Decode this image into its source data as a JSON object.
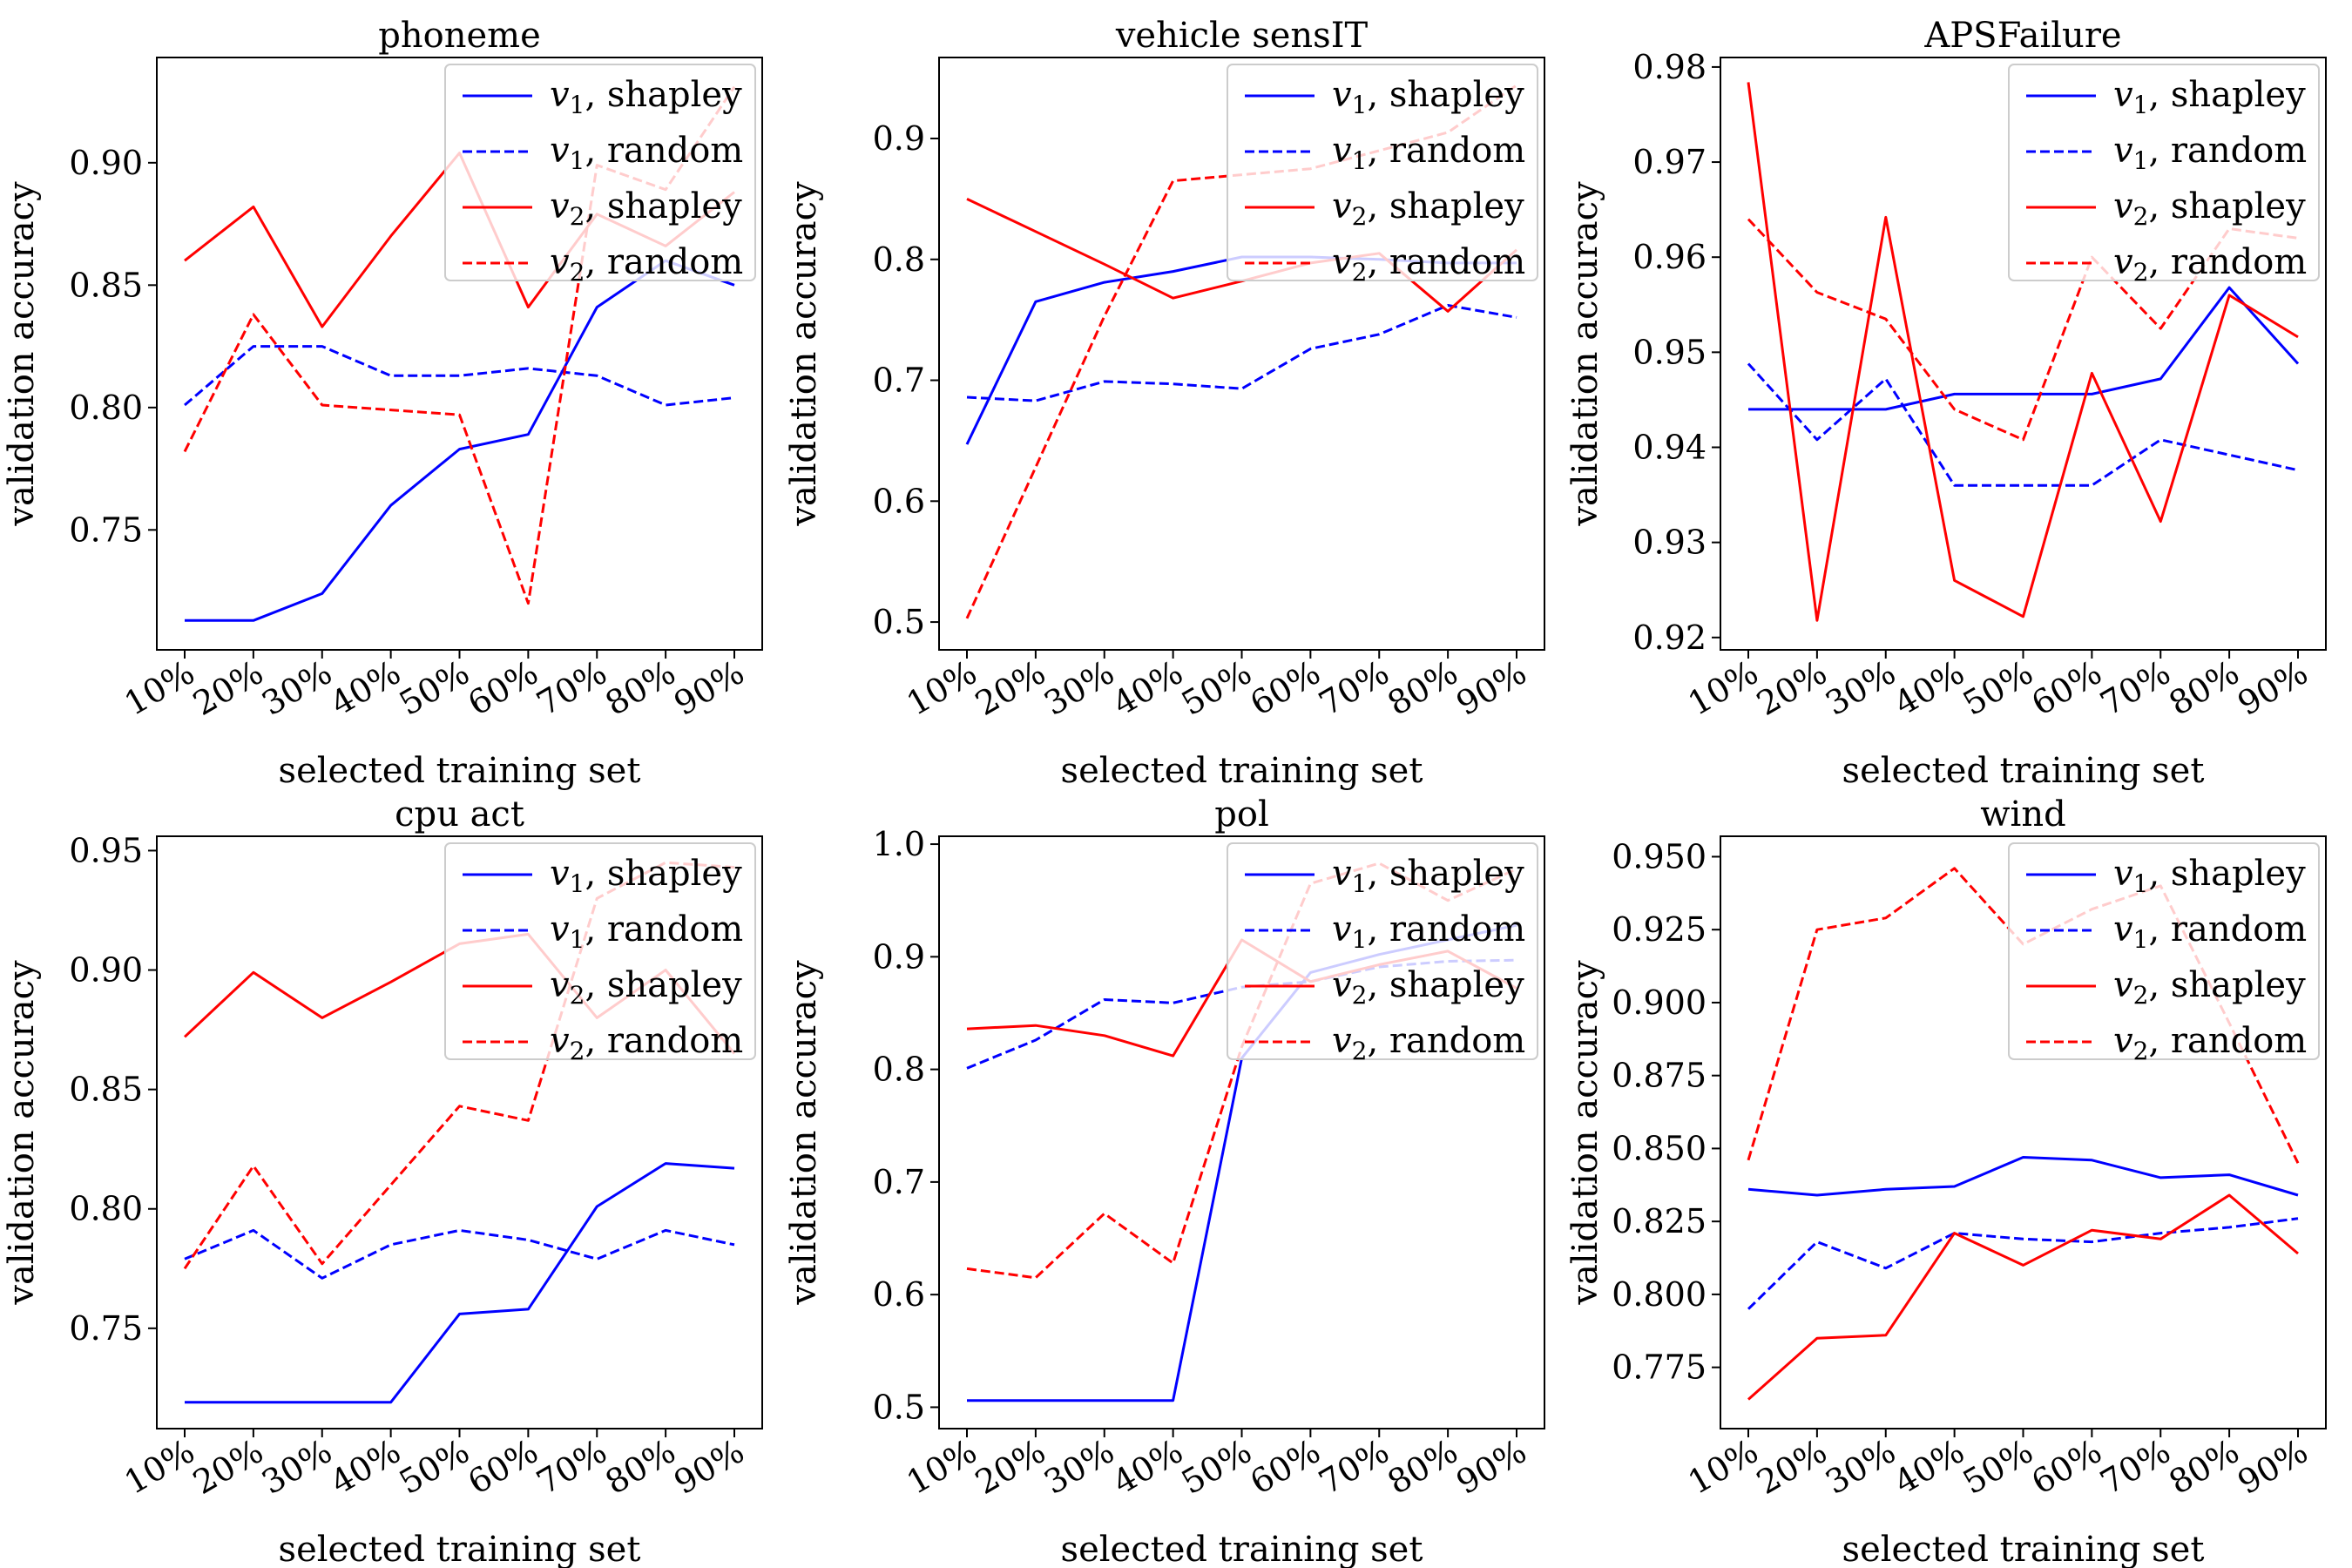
{
  "figure": {
    "legend_entries": [
      {
        "var": "v",
        "sub": "1",
        "rest": ", shapley",
        "color": "#0000ff",
        "dash": "solid"
      },
      {
        "var": "v",
        "sub": "1",
        "rest": ", random",
        "color": "#0000ff",
        "dash": "dashed"
      },
      {
        "var": "v",
        "sub": "2",
        "rest": ", shapley",
        "color": "#ff0000",
        "dash": "solid"
      },
      {
        "var": "v",
        "sub": "2",
        "rest": ", random",
        "color": "#ff0000",
        "dash": "dashed"
      }
    ]
  },
  "chart_data": [
    {
      "type": "line",
      "title": "phoneme",
      "xlabel": "selected training set",
      "ylabel": "validation accuracy",
      "categories": [
        "10%",
        "20%",
        "30%",
        "40%",
        "50%",
        "60%",
        "70%",
        "80%",
        "90%"
      ],
      "ylim": [
        0.701,
        0.943
      ],
      "yticks": [
        0.75,
        0.8,
        0.85,
        0.9
      ],
      "ytick_labels": [
        "0.75",
        "0.80",
        "0.85",
        "0.90"
      ],
      "legend_position": "top-right",
      "series": [
        {
          "name": "v1, shapley",
          "color": "#0000ff",
          "dash": "solid",
          "values": [
            0.713,
            0.713,
            0.724,
            0.76,
            0.783,
            0.789,
            0.841,
            0.86,
            0.85
          ]
        },
        {
          "name": "v1, random",
          "color": "#0000ff",
          "dash": "dashed",
          "values": [
            0.801,
            0.825,
            0.825,
            0.813,
            0.813,
            0.816,
            0.813,
            0.801,
            0.804
          ]
        },
        {
          "name": "v2, shapley",
          "color": "#ff0000",
          "dash": "solid",
          "values": [
            0.86,
            0.882,
            0.833,
            0.87,
            0.904,
            0.841,
            0.879,
            0.866,
            0.888
          ]
        },
        {
          "name": "v2, random",
          "color": "#ff0000",
          "dash": "dashed",
          "values": [
            0.782,
            0.838,
            0.801,
            0.799,
            0.797,
            0.72,
            0.899,
            0.889,
            0.931
          ]
        }
      ]
    },
    {
      "type": "line",
      "title": "vehicle sensIT",
      "xlabel": "selected training set",
      "ylabel": "validation accuracy",
      "categories": [
        "10%",
        "20%",
        "30%",
        "40%",
        "50%",
        "60%",
        "70%",
        "80%",
        "90%"
      ],
      "ylim": [
        0.477,
        0.967
      ],
      "yticks": [
        0.5,
        0.6,
        0.7,
        0.8,
        0.9
      ],
      "ytick_labels": [
        "0.5",
        "0.6",
        "0.7",
        "0.8",
        "0.9"
      ],
      "legend_position": "top-right",
      "series": [
        {
          "name": "v1, shapley",
          "color": "#0000ff",
          "dash": "solid",
          "values": [
            0.647,
            0.765,
            0.781,
            0.79,
            0.802,
            0.802,
            0.8,
            0.797,
            0.797
          ]
        },
        {
          "name": "v1, random",
          "color": "#0000ff",
          "dash": "dashed",
          "values": [
            0.686,
            0.683,
            0.699,
            0.697,
            0.693,
            0.726,
            0.738,
            0.762,
            0.752
          ]
        },
        {
          "name": "v2, shapley",
          "color": "#ff0000",
          "dash": "solid",
          "values": [
            0.85,
            0.823,
            0.796,
            0.768,
            0.782,
            0.797,
            0.805,
            0.757,
            0.808
          ]
        },
        {
          "name": "v2, random",
          "color": "#ff0000",
          "dash": "dashed",
          "values": [
            0.503,
            0.628,
            0.753,
            0.865,
            0.87,
            0.875,
            0.89,
            0.905,
            0.944
          ]
        }
      ]
    },
    {
      "type": "line",
      "title": "APSFailure",
      "xlabel": "selected training set",
      "ylabel": "validation accuracy",
      "categories": [
        "10%",
        "20%",
        "30%",
        "40%",
        "50%",
        "60%",
        "70%",
        "80%",
        "90%"
      ],
      "ylim": [
        0.9187,
        0.981
      ],
      "yticks": [
        0.92,
        0.93,
        0.94,
        0.95,
        0.96,
        0.97,
        0.98
      ],
      "ytick_labels": [
        "0.92",
        "0.93",
        "0.94",
        "0.95",
        "0.96",
        "0.97",
        "0.98"
      ],
      "legend_position": "top-right",
      "series": [
        {
          "name": "v1, shapley",
          "color": "#0000ff",
          "dash": "solid",
          "values": [
            0.944,
            0.944,
            0.944,
            0.9456,
            0.9456,
            0.9456,
            0.9472,
            0.9568,
            0.9488
          ]
        },
        {
          "name": "v1, random",
          "color": "#0000ff",
          "dash": "dashed",
          "values": [
            0.9488,
            0.9408,
            0.9472,
            0.936,
            0.936,
            0.936,
            0.9408,
            0.9392,
            0.9376
          ]
        },
        {
          "name": "v2, shapley",
          "color": "#ff0000",
          "dash": "solid",
          "values": [
            0.9784,
            0.9218,
            0.9642,
            0.926,
            0.9222,
            0.9478,
            0.9322,
            0.956,
            0.9516
          ]
        },
        {
          "name": "v2, random",
          "color": "#ff0000",
          "dash": "dashed",
          "values": [
            0.964,
            0.9563,
            0.9535,
            0.944,
            0.9408,
            0.96,
            0.9525,
            0.963,
            0.962
          ]
        }
      ]
    },
    {
      "type": "line",
      "title": "cpu act",
      "xlabel": "selected training set",
      "ylabel": "validation accuracy",
      "categories": [
        "10%",
        "20%",
        "30%",
        "40%",
        "50%",
        "60%",
        "70%",
        "80%",
        "90%"
      ],
      "ylim": [
        0.708,
        0.956
      ],
      "yticks": [
        0.75,
        0.8,
        0.85,
        0.9,
        0.95
      ],
      "ytick_labels": [
        "0.75",
        "0.80",
        "0.85",
        "0.90",
        "0.95"
      ],
      "legend_position": "top-right",
      "series": [
        {
          "name": "v1, shapley",
          "color": "#0000ff",
          "dash": "solid",
          "values": [
            0.719,
            0.719,
            0.719,
            0.719,
            0.756,
            0.758,
            0.801,
            0.819,
            0.817
          ]
        },
        {
          "name": "v1, random",
          "color": "#0000ff",
          "dash": "dashed",
          "values": [
            0.779,
            0.791,
            0.771,
            0.785,
            0.791,
            0.787,
            0.779,
            0.791,
            0.785
          ]
        },
        {
          "name": "v2, shapley",
          "color": "#ff0000",
          "dash": "solid",
          "values": [
            0.872,
            0.899,
            0.88,
            0.895,
            0.911,
            0.915,
            0.88,
            0.9,
            0.865
          ]
        },
        {
          "name": "v2, random",
          "color": "#ff0000",
          "dash": "dashed",
          "values": [
            0.775,
            0.818,
            0.777,
            0.81,
            0.843,
            0.837,
            0.93,
            0.945,
            0.943
          ]
        }
      ]
    },
    {
      "type": "line",
      "title": "pol",
      "xlabel": "selected training set",
      "ylabel": "validation accuracy",
      "categories": [
        "10%",
        "20%",
        "30%",
        "40%",
        "50%",
        "60%",
        "70%",
        "80%",
        "90%"
      ],
      "ylim": [
        0.481,
        1.007
      ],
      "yticks": [
        0.5,
        0.6,
        0.7,
        0.8,
        0.9,
        1.0
      ],
      "ytick_labels": [
        "0.5",
        "0.6",
        "0.7",
        "0.8",
        "0.9",
        "1.0"
      ],
      "legend_position": "top-right",
      "series": [
        {
          "name": "v1, shapley",
          "color": "#0000ff",
          "dash": "solid",
          "values": [
            0.506,
            0.506,
            0.506,
            0.506,
            0.81,
            0.886,
            0.902,
            0.915,
            0.928
          ]
        },
        {
          "name": "v1, random",
          "color": "#0000ff",
          "dash": "dashed",
          "values": [
            0.801,
            0.826,
            0.862,
            0.859,
            0.873,
            0.878,
            0.891,
            0.896,
            0.897
          ]
        },
        {
          "name": "v2, shapley",
          "color": "#ff0000",
          "dash": "solid",
          "values": [
            0.836,
            0.839,
            0.83,
            0.812,
            0.915,
            0.878,
            0.893,
            0.905,
            0.872
          ]
        },
        {
          "name": "v2, random",
          "color": "#ff0000",
          "dash": "dashed",
          "values": [
            0.623,
            0.615,
            0.672,
            0.628,
            0.82,
            0.965,
            0.983,
            0.95,
            0.978
          ]
        }
      ]
    },
    {
      "type": "line",
      "title": "wind",
      "xlabel": "selected training set",
      "ylabel": "validation accuracy",
      "categories": [
        "10%",
        "20%",
        "30%",
        "40%",
        "50%",
        "60%",
        "70%",
        "80%",
        "90%"
      ],
      "ylim": [
        0.754,
        0.957
      ],
      "yticks": [
        0.775,
        0.8,
        0.825,
        0.85,
        0.875,
        0.9,
        0.925,
        0.95
      ],
      "ytick_labels": [
        "0.775",
        "0.800",
        "0.825",
        "0.850",
        "0.875",
        "0.900",
        "0.925",
        "0.950"
      ],
      "legend_position": "top-right",
      "series": [
        {
          "name": "v1, shapley",
          "color": "#0000ff",
          "dash": "solid",
          "values": [
            0.836,
            0.834,
            0.836,
            0.837,
            0.847,
            0.846,
            0.84,
            0.841,
            0.834
          ]
        },
        {
          "name": "v1, random",
          "color": "#0000ff",
          "dash": "dashed",
          "values": [
            0.795,
            0.818,
            0.809,
            0.821,
            0.819,
            0.818,
            0.821,
            0.823,
            0.826
          ]
        },
        {
          "name": "v2, shapley",
          "color": "#ff0000",
          "dash": "solid",
          "values": [
            0.764,
            0.785,
            0.786,
            0.821,
            0.81,
            0.822,
            0.819,
            0.834,
            0.814
          ]
        },
        {
          "name": "v2, random",
          "color": "#ff0000",
          "dash": "dashed",
          "values": [
            0.846,
            0.925,
            0.929,
            0.946,
            0.92,
            0.932,
            0.94,
            0.893,
            0.845
          ]
        }
      ]
    }
  ]
}
